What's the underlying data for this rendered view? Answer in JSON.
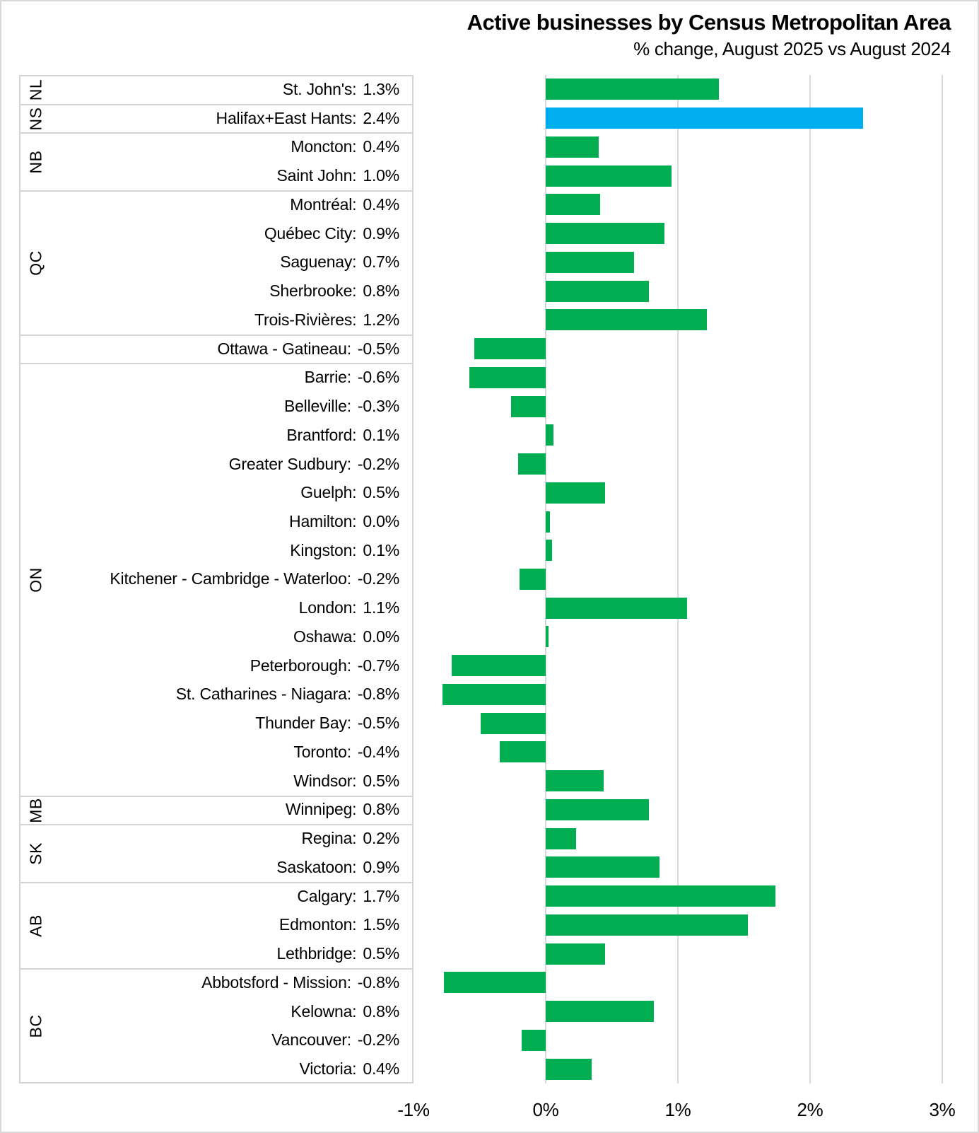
{
  "chart_data": {
    "type": "bar",
    "orientation": "horizontal",
    "title": "Active businesses by Census Metropolitan Area",
    "subtitle": "% change, August 2025 vs August 2024",
    "xlabel": "",
    "ylabel": "",
    "xlim": [
      -1,
      3
    ],
    "x_ticks": [
      "-1%",
      "0%",
      "1%",
      "2%",
      "3%"
    ],
    "x_tick_values": [
      -1,
      0,
      1,
      2,
      3
    ],
    "grid": true,
    "legend": "none",
    "colors": {
      "bar_green": "#00AD50",
      "bar_highlight_blue": "#00AEEF",
      "gridline": "#d9d9d9",
      "group_box_border": "#d4d4d4",
      "page_border": "#d8d8d8",
      "text": "#000000"
    },
    "groups": [
      {
        "province": "NL",
        "rows": [
          {
            "city": "St. John's",
            "label": "1.3%",
            "value": 1.3,
            "bar": 1.31
          }
        ]
      },
      {
        "province": "NS",
        "rows": [
          {
            "city": "Halifax+East Hants",
            "label": "2.4%",
            "value": 2.4,
            "bar": 2.4,
            "highlight": true
          }
        ]
      },
      {
        "province": "NB",
        "rows": [
          {
            "city": "Moncton",
            "label": "0.4%",
            "value": 0.4,
            "bar": 0.4
          },
          {
            "city": "Saint John",
            "label": "1.0%",
            "value": 1.0,
            "bar": 0.95
          }
        ]
      },
      {
        "province": "QC",
        "rows": [
          {
            "city": "Montréal",
            "label": "0.4%",
            "value": 0.4,
            "bar": 0.41
          },
          {
            "city": "Québec City",
            "label": "0.9%",
            "value": 0.9,
            "bar": 0.9
          },
          {
            "city": "Saguenay",
            "label": "0.7%",
            "value": 0.7,
            "bar": 0.67
          },
          {
            "city": "Sherbrooke",
            "label": "0.8%",
            "value": 0.8,
            "bar": 0.78
          },
          {
            "city": "Trois-Rivières",
            "label": "1.2%",
            "value": 1.2,
            "bar": 1.22
          }
        ]
      },
      {
        "province": "",
        "rows": [
          {
            "city": "Ottawa - Gatineau",
            "label": "-0.5%",
            "value": -0.5,
            "bar": -0.54
          }
        ]
      },
      {
        "province": "ON",
        "rows": [
          {
            "city": "Barrie",
            "label": "-0.6%",
            "value": -0.6,
            "bar": -0.58
          },
          {
            "city": "Belleville",
            "label": "-0.3%",
            "value": -0.3,
            "bar": -0.26
          },
          {
            "city": "Brantford",
            "label": "0.1%",
            "value": 0.1,
            "bar": 0.06
          },
          {
            "city": "Greater Sudbury",
            "label": "-0.2%",
            "value": -0.2,
            "bar": -0.21
          },
          {
            "city": "Guelph",
            "label": "0.5%",
            "value": 0.5,
            "bar": 0.45
          },
          {
            "city": "Hamilton",
            "label": "0.0%",
            "value": 0.0,
            "bar": 0.03
          },
          {
            "city": "Kingston",
            "label": "0.1%",
            "value": 0.1,
            "bar": 0.05
          },
          {
            "city": "Kitchener - Cambridge - Waterloo",
            "label": "-0.2%",
            "value": -0.2,
            "bar": -0.2
          },
          {
            "city": "London",
            "label": "1.1%",
            "value": 1.1,
            "bar": 1.07
          },
          {
            "city": "Oshawa",
            "label": "0.0%",
            "value": 0.0,
            "bar": 0.02
          },
          {
            "city": "Peterborough",
            "label": "-0.7%",
            "value": -0.7,
            "bar": -0.71
          },
          {
            "city": "St. Catharines - Niagara",
            "label": "-0.8%",
            "value": -0.8,
            "bar": -0.78
          },
          {
            "city": "Thunder Bay",
            "label": "-0.5%",
            "value": -0.5,
            "bar": -0.49
          },
          {
            "city": "Toronto",
            "label": "-0.4%",
            "value": -0.4,
            "bar": -0.35
          },
          {
            "city": "Windsor",
            "label": "0.5%",
            "value": 0.5,
            "bar": 0.44
          }
        ]
      },
      {
        "province": "MB",
        "rows": [
          {
            "city": "Winnipeg",
            "label": "0.8%",
            "value": 0.8,
            "bar": 0.78
          }
        ]
      },
      {
        "province": "SK",
        "rows": [
          {
            "city": "Regina",
            "label": "0.2%",
            "value": 0.2,
            "bar": 0.23
          },
          {
            "city": "Saskatoon",
            "label": "0.9%",
            "value": 0.9,
            "bar": 0.86
          }
        ]
      },
      {
        "province": "AB",
        "rows": [
          {
            "city": "Calgary",
            "label": "1.7%",
            "value": 1.7,
            "bar": 1.74
          },
          {
            "city": "Edmonton",
            "label": "1.5%",
            "value": 1.5,
            "bar": 1.53
          },
          {
            "city": "Lethbridge",
            "label": "0.5%",
            "value": 0.5,
            "bar": 0.45
          }
        ]
      },
      {
        "province": "BC",
        "rows": [
          {
            "city": "Abbotsford - Mission",
            "label": "-0.8%",
            "value": -0.8,
            "bar": -0.77
          },
          {
            "city": "Kelowna",
            "label": "0.8%",
            "value": 0.8,
            "bar": 0.82
          },
          {
            "city": "Vancouver",
            "label": "-0.2%",
            "value": -0.2,
            "bar": -0.18
          },
          {
            "city": "Victoria",
            "label": "0.4%",
            "value": 0.4,
            "bar": 0.35
          }
        ]
      }
    ]
  }
}
